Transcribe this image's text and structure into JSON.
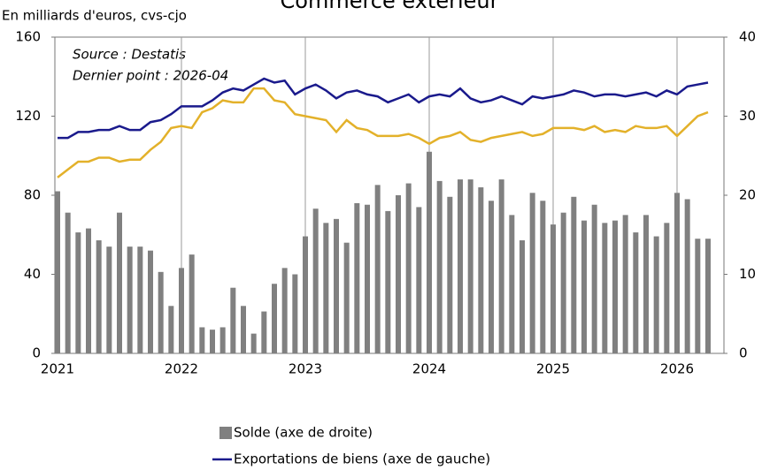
{
  "chart_data": {
    "type": "bar_line",
    "title": "Commerce extérieur",
    "y_label": "En milliards d'euros, cvs-cjo",
    "annotations": [
      "Source : Destatis",
      "Dernier point :   2026-04"
    ],
    "categories": [
      "2021",
      null,
      null,
      null,
      null,
      null,
      null,
      null,
      null,
      null,
      null,
      null,
      "2022",
      null,
      null,
      null,
      null,
      null,
      null,
      null,
      null,
      null,
      null,
      null,
      "2023",
      null,
      null,
      null,
      null,
      null,
      null,
      null,
      null,
      null,
      null,
      null,
      "2024",
      null,
      null,
      null,
      null,
      null,
      null,
      null,
      null,
      null,
      null,
      null,
      "2025",
      null,
      null,
      null,
      null,
      null,
      null,
      null,
      null,
      null,
      null,
      null,
      "2026",
      null,
      null,
      null
    ],
    "ylim": [
      0,
      160
    ],
    "yticks": [
      0,
      40,
      80,
      120,
      160
    ],
    "y2lim": [
      0,
      40
    ],
    "y2ticks": [
      0,
      10,
      20,
      30,
      40
    ],
    "grid": true,
    "series": [
      {
        "name": "Solde (axe de droite)",
        "color": "#808080",
        "axis": "y2",
        "kind": "bar",
        "values": [
          20.5,
          17.8,
          15.3,
          15.8,
          14.3,
          13.5,
          17.8,
          13.5,
          13.5,
          13,
          10.3,
          6,
          10.8,
          12.5,
          3.3,
          3,
          3.3,
          8.3,
          6,
          2.5,
          5.3,
          8.8,
          10.8,
          10,
          14.8,
          18.3,
          16.5,
          17,
          14,
          19,
          18.8,
          21.3,
          18,
          20,
          21.5,
          18.5,
          25.5,
          21.8,
          19.8,
          22,
          22,
          21,
          19.3,
          22,
          17.5,
          14.3,
          20.3,
          19.3,
          16.3,
          17.8,
          19.8,
          16.8,
          18.8,
          16.5,
          16.8,
          17.5,
          15.3,
          17.5,
          14.8,
          16.5,
          20.3,
          19.5,
          14.5,
          14.5
        ]
      },
      {
        "name": "Exportations de biens (axe de gauche)",
        "color": "#1a1a8c",
        "kind": "line",
        "values": [
          109,
          109,
          112,
          112,
          113,
          113,
          115,
          113,
          113,
          117,
          118,
          121,
          125,
          125,
          125,
          128,
          132,
          134,
          133,
          136,
          139,
          137,
          138,
          131,
          134,
          136,
          133,
          129,
          132,
          133,
          131,
          130,
          127,
          129,
          131,
          127,
          130,
          131,
          130,
          134,
          129,
          127,
          128,
          130,
          128,
          126,
          130,
          129,
          130,
          131,
          133,
          132,
          130,
          131,
          131,
          130,
          131,
          132,
          130,
          133,
          131,
          135,
          136,
          137
        ]
      },
      {
        "color": "#e3b12a",
        "kind": "line",
        "values": [
          89,
          93,
          97,
          97,
          99,
          99,
          97,
          98,
          98,
          103,
          107,
          114,
          115,
          114,
          122,
          124,
          128,
          127,
          127,
          134,
          134,
          128,
          127,
          121,
          120,
          119,
          118,
          112,
          118,
          114,
          113,
          110,
          110,
          110,
          111,
          109,
          106,
          109,
          110,
          112,
          108,
          107,
          109,
          110,
          111,
          112,
          110,
          111,
          114,
          114,
          114,
          113,
          115,
          112,
          113,
          112,
          115,
          114,
          114,
          115,
          110,
          115,
          120,
          122
        ]
      }
    ]
  }
}
